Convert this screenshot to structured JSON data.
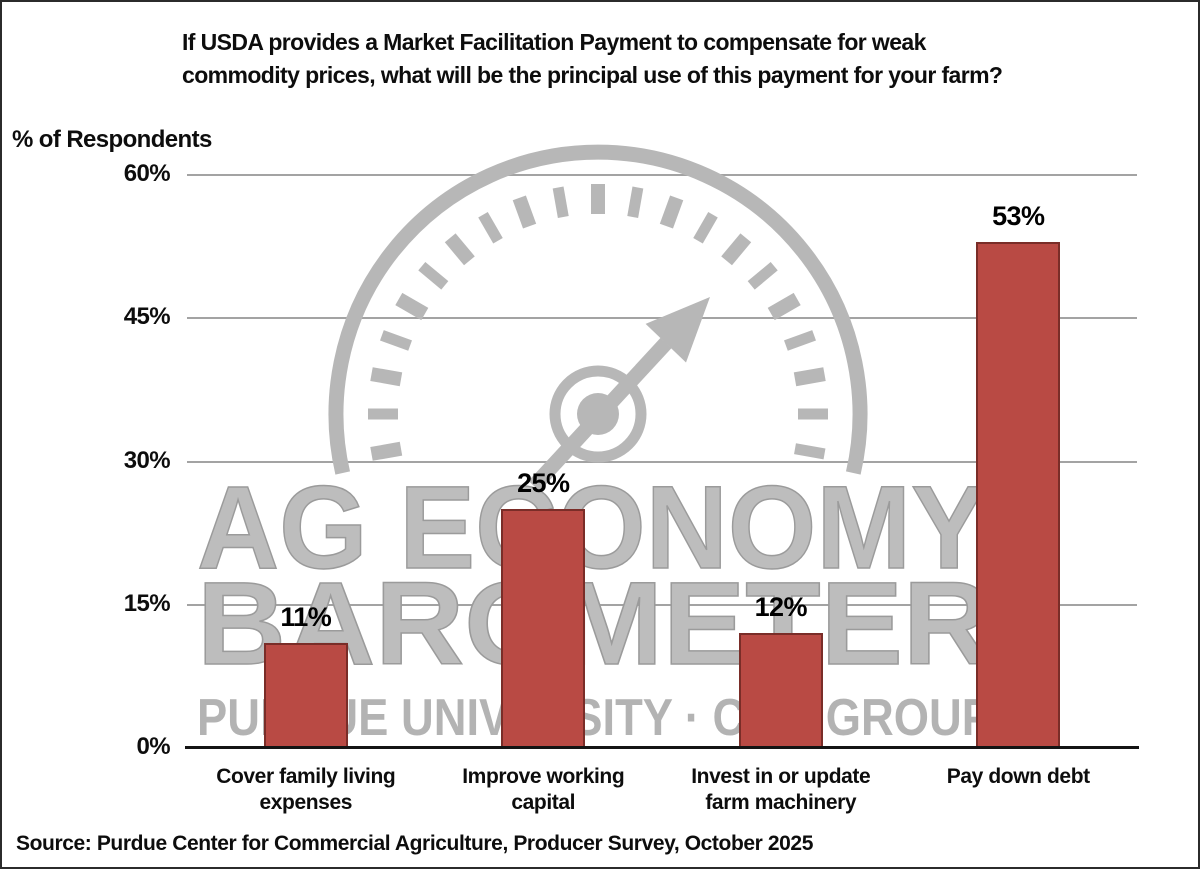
{
  "chart_data": {
    "type": "bar",
    "title": "If USDA provides a Market Facilitation Payment to compensate for weak commodity prices, what will be the principal use of this payment for your farm?",
    "title_lines": [
      "If USDA provides a Market Facilitation Payment to compensate for weak",
      "commodity prices, what will be the principal use of this payment for your farm?"
    ],
    "ylabel": "% of Respondents",
    "xlabel": "",
    "categories": [
      "Cover family living expenses",
      "Improve working capital",
      "Invest in or update farm machinery",
      "Pay down debt"
    ],
    "category_lines": [
      [
        "Cover family living",
        "expenses"
      ],
      [
        "Improve working",
        "capital"
      ],
      [
        "Invest in or update",
        "farm machinery"
      ],
      [
        "Pay down debt"
      ]
    ],
    "values": [
      11,
      25,
      12,
      53
    ],
    "value_labels": [
      "11%",
      "25%",
      "12%",
      "53%"
    ],
    "ylim": [
      0,
      60
    ],
    "yticks": [
      0,
      15,
      30,
      45,
      60
    ],
    "ytick_labels": [
      "0%",
      "15%",
      "30%",
      "45%",
      "60%"
    ],
    "grid": true,
    "legend": false,
    "bar_color": "#b94a44",
    "bar_border_color": "#7a2d28"
  },
  "watermark": {
    "icon": "gauge-dial-icon",
    "line1": "AG ECONOMY",
    "line2": "BAROMETER",
    "line3": "PURDUE UNIVERSITY · CME GROUP",
    "color": "#b9b9b9"
  },
  "source_note": "Source: Purdue Center for Commercial Agriculture, Producer Survey, October 2025"
}
